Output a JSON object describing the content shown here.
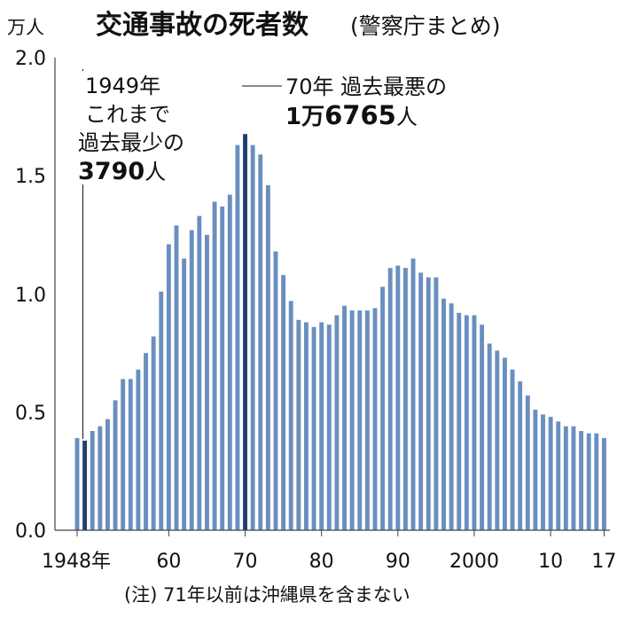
{
  "chart_data": {
    "type": "bar",
    "title": "交通事故の死者数",
    "subtitle": "(警察庁まとめ)",
    "ylabel": "万人",
    "ylim": [
      0,
      2.0
    ],
    "yticks": [
      "2.0",
      "1.5",
      "1.0",
      "0.5",
      "0.0"
    ],
    "grid": false,
    "x_tick_labels": [
      {
        "year": 1948,
        "label": "1948年"
      },
      {
        "year": 1960,
        "label": "60"
      },
      {
        "year": 1970,
        "label": "70"
      },
      {
        "year": 1980,
        "label": "80"
      },
      {
        "year": 1990,
        "label": "90"
      },
      {
        "year": 2000,
        "label": "2000"
      },
      {
        "year": 2010,
        "label": "10"
      },
      {
        "year": 2017,
        "label": "17"
      }
    ],
    "bar_color": "#6a8fbf",
    "highlight_color": "#1f3f6e",
    "highlighted_years": [
      1949,
      1970
    ],
    "years": [
      1948,
      1949,
      1950,
      1951,
      1952,
      1953,
      1954,
      1955,
      1956,
      1957,
      1958,
      1959,
      1960,
      1961,
      1962,
      1963,
      1964,
      1965,
      1966,
      1967,
      1968,
      1969,
      1970,
      1971,
      1972,
      1973,
      1974,
      1975,
      1976,
      1977,
      1978,
      1979,
      1980,
      1981,
      1982,
      1983,
      1984,
      1985,
      1986,
      1987,
      1988,
      1989,
      1990,
      1991,
      1992,
      1993,
      1994,
      1995,
      1996,
      1997,
      1998,
      1999,
      2000,
      2001,
      2002,
      2003,
      2004,
      2005,
      2006,
      2007,
      2008,
      2009,
      2010,
      2011,
      2012,
      2013,
      2014,
      2015,
      2016,
      2017
    ],
    "values": [
      0.39,
      0.379,
      0.42,
      0.44,
      0.47,
      0.55,
      0.64,
      0.64,
      0.68,
      0.75,
      0.82,
      1.01,
      1.21,
      1.29,
      1.15,
      1.27,
      1.33,
      1.25,
      1.39,
      1.37,
      1.42,
      1.63,
      1.6765,
      1.63,
      1.59,
      1.46,
      1.18,
      1.08,
      0.97,
      0.89,
      0.88,
      0.86,
      0.88,
      0.87,
      0.91,
      0.95,
      0.93,
      0.93,
      0.93,
      0.94,
      1.03,
      1.11,
      1.12,
      1.11,
      1.15,
      1.09,
      1.07,
      1.07,
      0.98,
      0.96,
      0.92,
      0.91,
      0.91,
      0.87,
      0.79,
      0.76,
      0.73,
      0.68,
      0.63,
      0.57,
      0.51,
      0.49,
      0.48,
      0.46,
      0.44,
      0.44,
      0.42,
      0.41,
      0.41,
      0.39
    ],
    "annotations": {
      "low": {
        "line1": "1949年",
        "line2": "これまで",
        "line3": "過去最少の",
        "value": "3790",
        "unit": "人"
      },
      "high": {
        "line1": "70年 過去最悪の",
        "value_a": "1万",
        "value_b": "6765",
        "unit": "人"
      }
    },
    "note": "(注) 71年以前は沖縄県を含まない"
  }
}
